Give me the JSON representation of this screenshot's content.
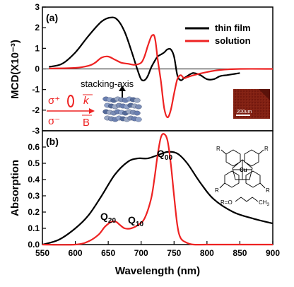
{
  "chart_data": [
    {
      "type": "line",
      "panel": "(a)",
      "ylabel": "MCD(X10⁻³)",
      "xlim": [
        550,
        900
      ],
      "ylim": [
        -3,
        3
      ],
      "yticks": [
        -3,
        -2,
        -1,
        0,
        1,
        2,
        3
      ],
      "legend": "top-right",
      "series": [
        {
          "name": "thin film",
          "color": "#000000",
          "x": [
            560,
            580,
            600,
            620,
            640,
            655,
            665,
            675,
            685,
            695,
            700,
            705,
            710,
            715,
            720,
            725,
            730,
            735,
            740,
            745,
            750,
            755,
            760,
            765,
            770,
            775,
            780,
            790,
            800,
            810,
            820,
            830,
            840,
            850
          ],
          "y": [
            0.1,
            0.25,
            0.8,
            1.6,
            2.3,
            2.5,
            2.35,
            1.8,
            0.9,
            -0.1,
            -0.5,
            -0.55,
            -0.35,
            0.05,
            0.35,
            0.6,
            0.7,
            0.8,
            0.95,
            0.95,
            0.6,
            -0.3,
            -0.55,
            -0.45,
            -0.35,
            -0.25,
            -0.2,
            -0.3,
            -0.5,
            -0.5,
            -0.35,
            -0.3,
            -0.25,
            -0.2
          ]
        },
        {
          "name": "solution",
          "color": "#ee2222",
          "x": [
            560,
            600,
            620,
            630,
            640,
            650,
            660,
            670,
            680,
            690,
            700,
            705,
            710,
            715,
            718,
            720,
            722,
            725,
            730,
            735,
            740,
            745,
            750,
            755,
            760,
            765,
            770,
            780,
            800,
            820,
            850,
            900
          ],
          "y": [
            0.02,
            0.05,
            0.15,
            0.3,
            0.55,
            0.6,
            0.45,
            0.3,
            0.25,
            0.2,
            0.3,
            0.6,
            1.1,
            1.55,
            1.65,
            1.6,
            1.3,
            0.5,
            -0.6,
            -1.9,
            -2.35,
            -2.0,
            -1.2,
            -0.5,
            -0.3,
            -0.45,
            -0.4,
            -0.3,
            -0.15,
            -0.05,
            0.0,
            0.0
          ]
        }
      ],
      "annotations": {
        "stacking_axis": "stacking-axis",
        "sigma_plus": "σ⁺",
        "sigma_minus": "σ⁻",
        "k": "k",
        "b": "B",
        "scale_bar": "200um"
      }
    },
    {
      "type": "line",
      "panel": "(b)",
      "xlabel": "Wavelength (nm)",
      "ylabel": "Absorption",
      "xlim": [
        550,
        900
      ],
      "ylim": [
        0,
        0.7
      ],
      "xticks": [
        550,
        600,
        650,
        700,
        750,
        800,
        850,
        900
      ],
      "yticks": [
        0.0,
        0.1,
        0.2,
        0.3,
        0.4,
        0.5,
        0.6
      ],
      "series": [
        {
          "name": "thin film",
          "color": "#000000",
          "x": [
            550,
            575,
            600,
            620,
            640,
            660,
            680,
            695,
            710,
            725,
            740,
            755,
            770,
            790,
            810,
            840,
            870,
            900
          ],
          "y": [
            0.0,
            0.03,
            0.1,
            0.18,
            0.3,
            0.43,
            0.51,
            0.53,
            0.53,
            0.55,
            0.57,
            0.56,
            0.5,
            0.38,
            0.28,
            0.2,
            0.16,
            0.13
          ]
        },
        {
          "name": "solution",
          "color": "#ee2222",
          "x": [
            550,
            600,
            620,
            635,
            645,
            655,
            662,
            668,
            675,
            685,
            695,
            705,
            715,
            720,
            725,
            730,
            735,
            740,
            745,
            750,
            755,
            760,
            770,
            780,
            800,
            850,
            900
          ],
          "y": [
            0.0,
            0.0,
            0.02,
            0.06,
            0.11,
            0.14,
            0.14,
            0.12,
            0.1,
            0.1,
            0.12,
            0.16,
            0.28,
            0.4,
            0.55,
            0.66,
            0.68,
            0.64,
            0.5,
            0.3,
            0.12,
            0.04,
            0.01,
            0.0,
            0.0,
            0.0,
            0.0
          ]
        }
      ],
      "annotations": {
        "q00": "Q",
        "q00_sub": "00",
        "q10": "Q",
        "q10_sub": "10",
        "q20": "Q",
        "q20_sub": "20",
        "cu": "Cu",
        "ch3": "CH",
        "ch3_sub": "3",
        "r_chain": "R=O",
        "r": "R"
      }
    }
  ]
}
